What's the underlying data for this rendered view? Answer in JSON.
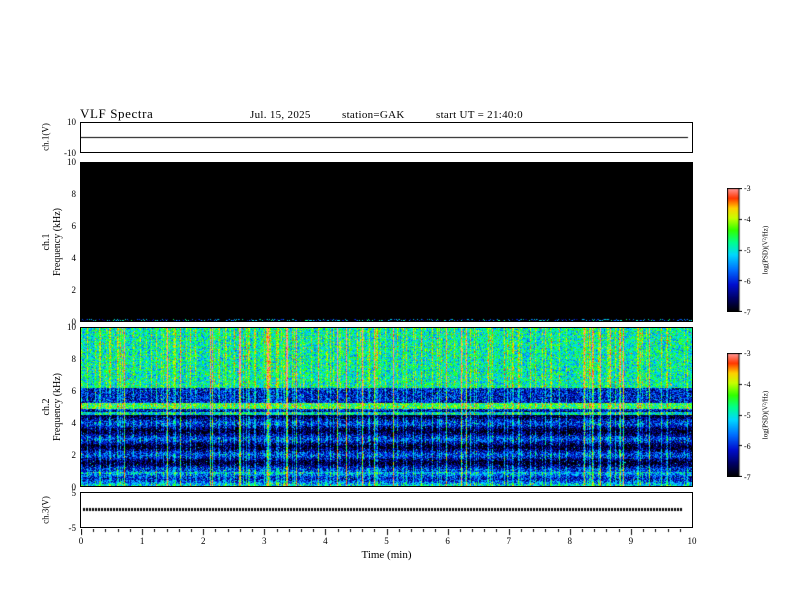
{
  "header": {
    "title": "VLF  Spectra",
    "date": "Jul. 15, 2025",
    "station": "station=GAK",
    "start_ut": "start UT =  21:40:0"
  },
  "left_axis": {
    "ch1v": "ch.1(V)",
    "ch1_ch": "ch.1",
    "ch1_axis": "Frequency (kHz)",
    "ch2_ch": "ch.2",
    "ch2_axis": "Frequency (kHz)",
    "ch3v": "ch.3(V)"
  },
  "strip_axis": {
    "ch1v_max": "10",
    "ch1v_min": "-10",
    "ch3v_max": "5",
    "ch3v_min": "-5"
  },
  "freq_ticks": [
    0,
    2,
    4,
    6,
    8,
    10
  ],
  "xaxis": {
    "label": "Time  (min)",
    "ticks": [
      0,
      1,
      2,
      3,
      4,
      5,
      6,
      7,
      8,
      9,
      10
    ]
  },
  "colorbar": {
    "label": "log(PSD)(V²/Hz)",
    "ticks": [
      -3,
      -4,
      -5,
      -6,
      -7
    ]
  },
  "colormap": {
    "stops": [
      [
        0.0,
        "#000000"
      ],
      [
        0.1,
        "#000060"
      ],
      [
        0.22,
        "#0010d0"
      ],
      [
        0.34,
        "#0070ff"
      ],
      [
        0.46,
        "#00d8ff"
      ],
      [
        0.56,
        "#00ff90"
      ],
      [
        0.66,
        "#30ff00"
      ],
      [
        0.76,
        "#c8ff00"
      ],
      [
        0.84,
        "#ffd000"
      ],
      [
        0.92,
        "#ff3800"
      ],
      [
        1.0,
        "#ff9898"
      ]
    ]
  },
  "chart_data": [
    {
      "type": "line",
      "panel": "ch.1(V) voltage strip",
      "ylim": [
        -10,
        10
      ],
      "xlim": [
        0,
        10
      ],
      "x_unit": "min",
      "values_summary": "constant 0 V flat trace for full 10 minutes"
    },
    {
      "type": "heatmap",
      "panel": "ch.1 spectrogram",
      "ylabel": "Frequency (kHz)",
      "ylim": [
        0,
        10
      ],
      "xlim": [
        0,
        10
      ],
      "zlabel": "log(PSD)(V²/Hz)",
      "zlim": [
        -7,
        -3
      ],
      "values_summary": "no signal: entire panel at colormap floor -7 (black) with a thin weak noise line at the 0 kHz bottom edge"
    },
    {
      "type": "heatmap",
      "panel": "ch.2 spectrogram",
      "ylabel": "Frequency (kHz)",
      "ylim": [
        0,
        10
      ],
      "xlim": [
        0,
        10
      ],
      "zlabel": "log(PSD)(V²/Hz)",
      "zlim": [
        -7,
        -3
      ],
      "values_summary": "broadband impulsive noise: dense green/yellow speckle above ~6.3 kHz (~-5 level), bright horizontal band near 5.1 kHz (~-4.7), darker blue/black banded structure below 5 kHz (~-6.5, darkest at half-integer kHz), many vertical green streaks, sporadic red streaks, enhanced power below ~0.9 kHz",
      "render": {
        "seed": 1337,
        "upper_start_khz": 6.25,
        "upper_base": -5.05,
        "mid_base": -6.25,
        "low_base": -6.55,
        "band_amp": 0.5,
        "line_khz": [
          4.92,
          5.28
        ],
        "line_level": -4.7,
        "line2_khz": [
          6.25,
          6.45
        ],
        "line2_level": -5.0,
        "line3_khz": [
          4.55,
          4.7
        ],
        "line3_level": -5.2,
        "low_boost_khz": 0.9,
        "low_boost": 0.8,
        "noise_amp": 0.75,
        "p_strong_streak": 0.045,
        "p_green_streak": 0.27
      }
    },
    {
      "type": "line",
      "panel": "ch.3(V) voltage strip",
      "ylim": [
        -5,
        5
      ],
      "xlim": [
        0,
        10
      ],
      "x_unit": "min",
      "values_summary": "constant 0 V thick flat trace for full 10 minutes"
    }
  ]
}
